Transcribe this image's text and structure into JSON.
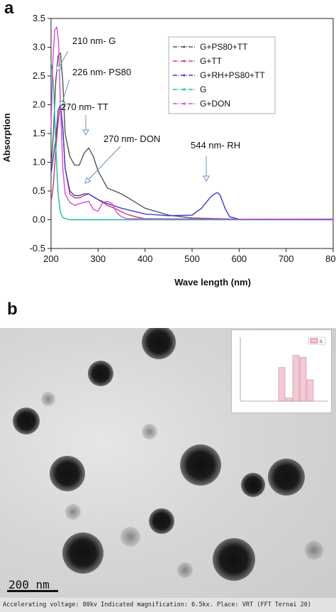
{
  "panel_a_label": "a",
  "panel_b_label": "b",
  "chart_data": {
    "type": "line",
    "xlabel": "Wave length (nm)",
    "ylabel": "Absorption",
    "xlim": [
      200,
      800
    ],
    "ylim": [
      -0.5,
      3.5
    ],
    "xticks": [
      "200",
      "300",
      "400",
      "500",
      "600",
      "700",
      "800"
    ],
    "yticks": [
      "-0.5",
      "0.0",
      "0.5",
      "1.0",
      "1.5",
      "2.0",
      "2.5",
      "3.0",
      "3.5"
    ],
    "legend_position": "top-right",
    "series": [
      {
        "name": "G+PS80+TT",
        "color": "#555555",
        "x": [
          200,
          205,
          210,
          215,
          220,
          225,
          230,
          240,
          250,
          260,
          270,
          280,
          290,
          300,
          320,
          350,
          380,
          400,
          450,
          500,
          550,
          600,
          800
        ],
        "y": [
          0.9,
          1.5,
          2.4,
          2.85,
          2.9,
          2.4,
          1.5,
          1.1,
          0.95,
          0.95,
          1.15,
          1.25,
          1.1,
          0.85,
          0.55,
          0.45,
          0.3,
          0.2,
          0.08,
          0.03,
          0.02,
          0.01,
          0.01
        ]
      },
      {
        "name": "G+TT",
        "color": "#d0396a",
        "x": [
          200,
          205,
          210,
          215,
          220,
          225,
          230,
          240,
          250,
          260,
          270,
          280,
          290,
          300,
          320,
          340,
          360,
          380,
          400,
          500,
          800
        ],
        "y": [
          0.3,
          0.6,
          1.2,
          1.7,
          2.0,
          1.6,
          0.9,
          0.45,
          0.38,
          0.38,
          0.42,
          0.45,
          0.4,
          0.35,
          0.25,
          0.18,
          0.1,
          0.05,
          0.02,
          0.01,
          0.01
        ]
      },
      {
        "name": "G+RH+PS80+TT",
        "color": "#3a3ec8",
        "x": [
          200,
          210,
          215,
          220,
          225,
          230,
          240,
          250,
          260,
          270,
          280,
          300,
          320,
          350,
          400,
          450,
          500,
          520,
          530,
          540,
          550,
          555,
          560,
          570,
          580,
          600,
          800
        ],
        "y": [
          0.8,
          1.4,
          1.9,
          2.0,
          1.6,
          0.9,
          0.5,
          0.42,
          0.42,
          0.45,
          0.45,
          0.35,
          0.28,
          0.2,
          0.1,
          0.07,
          0.08,
          0.2,
          0.3,
          0.4,
          0.46,
          0.47,
          0.42,
          0.2,
          0.05,
          0.01,
          0.01
        ]
      },
      {
        "name": "G",
        "color": "#1fb99a",
        "x": [
          200,
          203,
          206,
          210,
          215,
          220,
          225,
          230,
          240,
          250,
          800
        ],
        "y": [
          2.75,
          2.6,
          2.2,
          1.3,
          0.45,
          0.12,
          0.04,
          0.02,
          0.0,
          0.0,
          0.0
        ]
      },
      {
        "name": "G+DON",
        "color": "#d64ad6",
        "x": [
          200,
          204,
          208,
          212,
          216,
          220,
          225,
          230,
          240,
          250,
          260,
          270,
          280,
          290,
          300,
          310,
          320,
          330,
          340,
          350,
          360,
          800
        ],
        "y": [
          1.6,
          2.8,
          3.3,
          3.35,
          3.1,
          2.0,
          0.9,
          0.45,
          0.3,
          0.25,
          0.28,
          0.3,
          0.32,
          0.18,
          0.15,
          0.3,
          0.32,
          0.28,
          0.12,
          0.05,
          0.02,
          0.0
        ]
      }
    ],
    "annotations": [
      {
        "text": "210 nm- G",
        "at": [
          210,
          2.7
        ]
      },
      {
        "text": "226 nm- PS80",
        "at": [
          220,
          2.0
        ]
      },
      {
        "text": "270 nm- TT",
        "at": [
          270,
          1.55
        ]
      },
      {
        "text": "270 nm- DON",
        "at": [
          270,
          0.55
        ]
      },
      {
        "text": "544 nm- RH",
        "at": [
          555,
          0.6
        ]
      }
    ]
  },
  "tem": {
    "scale_label": "200 nm",
    "footer_text": "Accelerating voltage: 80kv   Indicated magnification: 6.5kx. Place: VRT (FFT Ternai 20)"
  },
  "inset_histogram": {
    "type": "bar",
    "legend": "B",
    "bars": [
      0.0,
      0.55,
      0.05,
      0.75,
      0.72,
      0.35,
      0.0,
      0.0
    ],
    "color": "#f2c9d6"
  }
}
